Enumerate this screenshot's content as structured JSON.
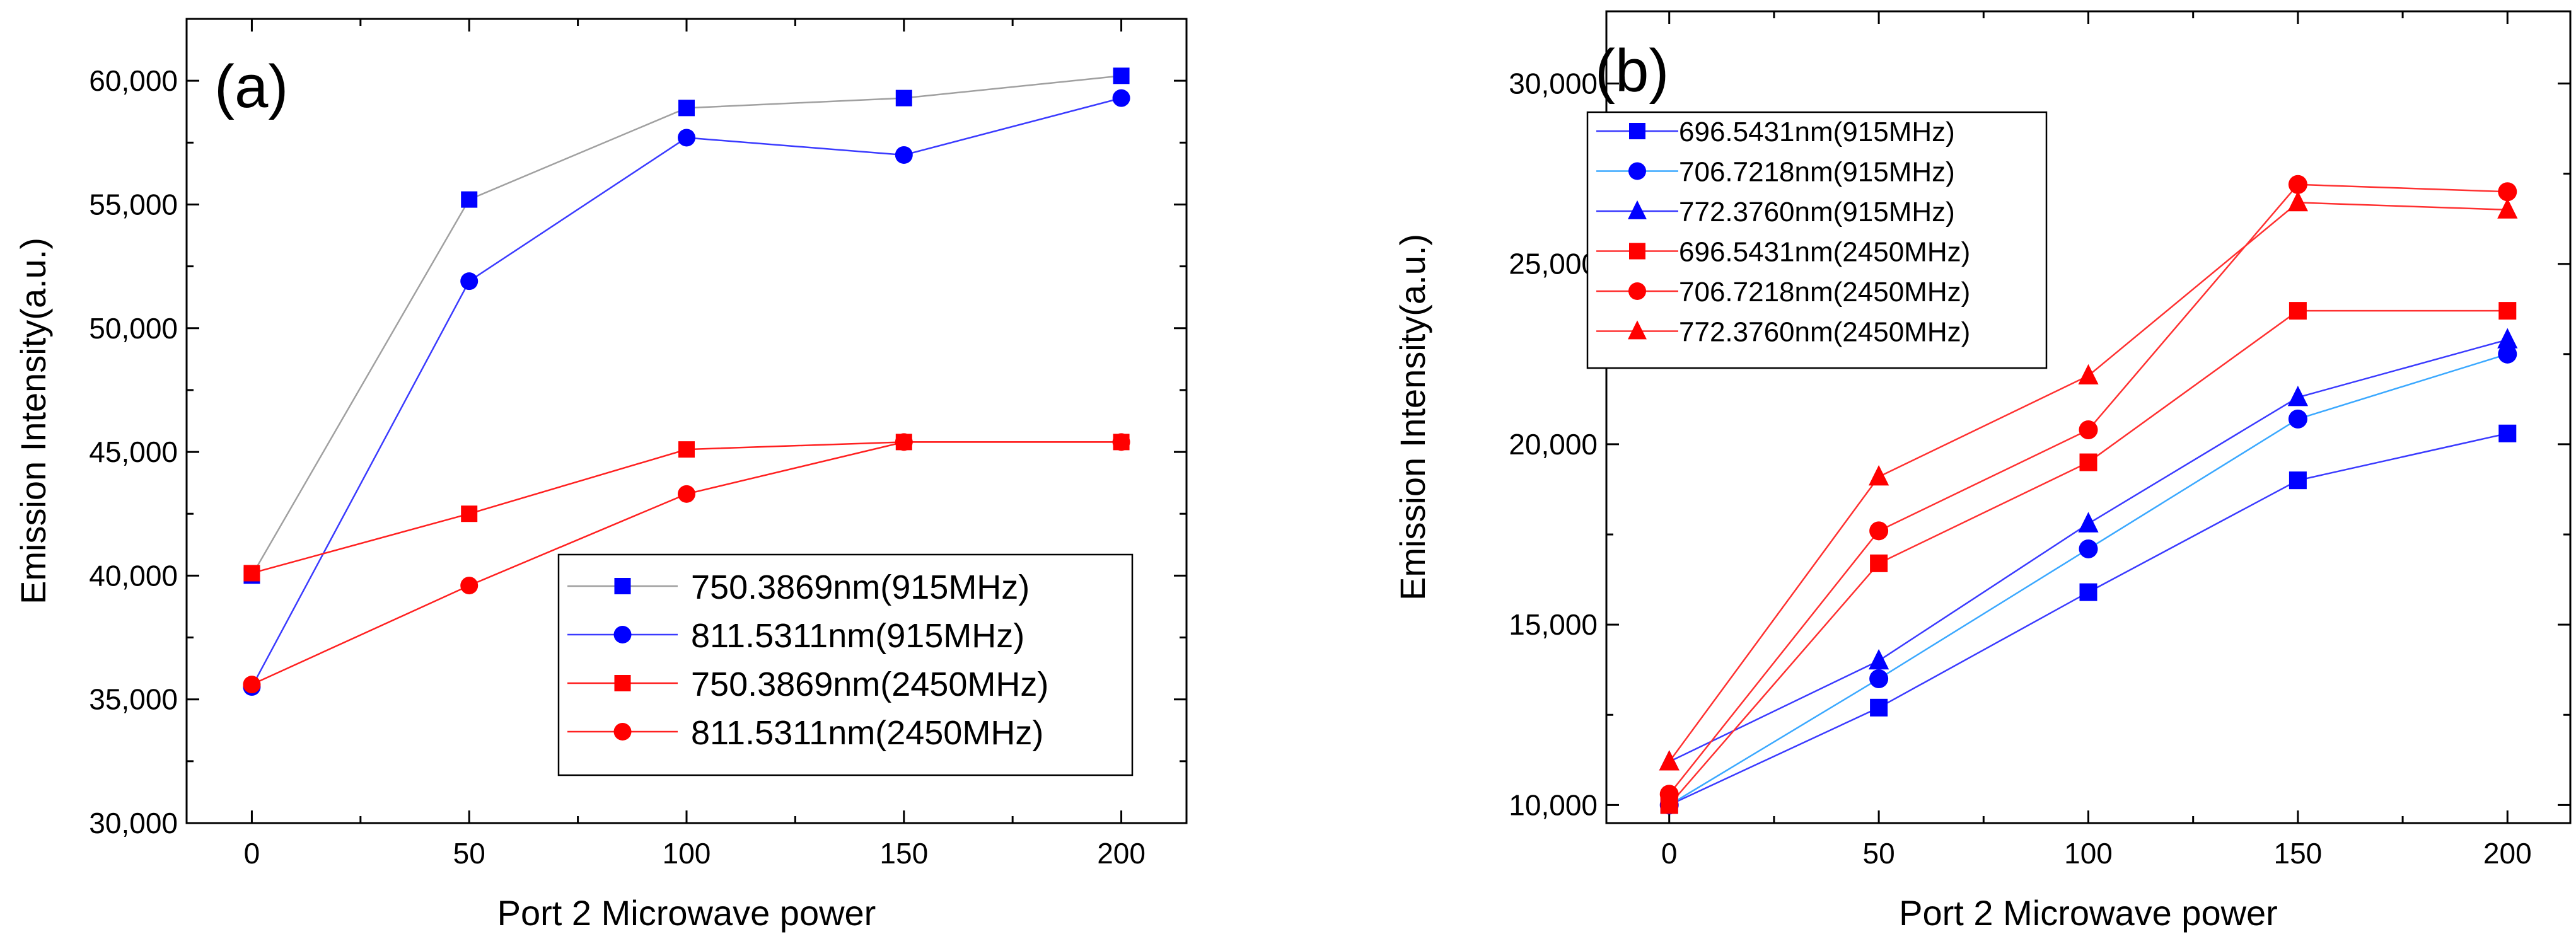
{
  "chart_data": [
    {
      "type": "line",
      "panel_label": "(a)",
      "xlabel": "Port 2 Microwave power",
      "ylabel": "Emission Intensity(a.u.)",
      "x": [
        0,
        50,
        100,
        150,
        200
      ],
      "xlim": [
        -15,
        215
      ],
      "ylim": [
        30000,
        62500
      ],
      "xticks": [
        0,
        50,
        100,
        150,
        200
      ],
      "yticks": [
        30000,
        35000,
        40000,
        45000,
        50000,
        55000,
        60000
      ],
      "xtick_labels": [
        "0",
        "50",
        "100",
        "150",
        "200"
      ],
      "ytick_labels": [
        "30,000",
        "35,000",
        "40,000",
        "45,000",
        "50,000",
        "55,000",
        "60,000"
      ],
      "grid": false,
      "legend_position": "bottom-right",
      "series": [
        {
          "name": "750.3869nm(915MHz)",
          "values": [
            40000,
            55200,
            58900,
            59300,
            60200
          ],
          "marker": "square",
          "line_color": "#a0a0a0",
          "marker_color": "#0000ff"
        },
        {
          "name": "811.5311nm(915MHz)",
          "values": [
            35500,
            51900,
            57700,
            57000,
            59300
          ],
          "marker": "circle",
          "line_color": "#3a3aff",
          "marker_color": "#0000ff"
        },
        {
          "name": "750.3869nm(2450MHz)",
          "values": [
            40100,
            42500,
            45100,
            45400,
            45400
          ],
          "marker": "square",
          "line_color": "#ff2020",
          "marker_color": "#ff0000"
        },
        {
          "name": "811.5311nm(2450MHz)",
          "values": [
            35600,
            39600,
            43300,
            45400,
            45400
          ],
          "marker": "circle",
          "line_color": "#ff2020",
          "marker_color": "#ff0000"
        }
      ]
    },
    {
      "type": "line",
      "panel_label": "(b)",
      "xlabel": "Port 2 Microwave power",
      "ylabel": "Emission Intensity(a.u.)",
      "x": [
        0,
        50,
        100,
        150,
        200
      ],
      "xlim": [
        -15,
        215
      ],
      "ylim": [
        9500,
        32000
      ],
      "xticks": [
        0,
        50,
        100,
        150,
        200
      ],
      "yticks": [
        10000,
        15000,
        20000,
        25000,
        30000
      ],
      "xtick_labels": [
        "0",
        "50",
        "100",
        "150",
        "200"
      ],
      "ytick_labels": [
        "10,000",
        "15,000",
        "20,000",
        "25,000",
        "30,000"
      ],
      "grid": false,
      "legend_position": "top-left",
      "series": [
        {
          "name": "696.5431nm(915MHz)",
          "values": [
            10000,
            12700,
            15900,
            19000,
            20300
          ],
          "marker": "square",
          "line_color": "#3a3aff",
          "marker_color": "#0000ff"
        },
        {
          "name": "706.7218nm(915MHz)",
          "values": [
            10000,
            13500,
            17100,
            20700,
            22500
          ],
          "marker": "circle",
          "line_color": "#3aa8ff",
          "marker_color": "#0000ff"
        },
        {
          "name": "772.3760nm(915MHz)",
          "values": [
            11200,
            14000,
            17800,
            21300,
            22900
          ],
          "marker": "triangle",
          "line_color": "#3a3aff",
          "marker_color": "#0000ff"
        },
        {
          "name": "696.5431nm(2450MHz)",
          "values": [
            10000,
            16700,
            19500,
            23700,
            23700
          ],
          "marker": "square",
          "line_color": "#ff3030",
          "marker_color": "#ff0000"
        },
        {
          "name": "706.7218nm(2450MHz)",
          "values": [
            10300,
            17600,
            20400,
            27200,
            27000
          ],
          "marker": "circle",
          "line_color": "#ff3030",
          "marker_color": "#ff0000"
        },
        {
          "name": "772.3760nm(2450MHz)",
          "values": [
            11200,
            19100,
            21900,
            26700,
            26500
          ],
          "marker": "triangle",
          "line_color": "#ff3030",
          "marker_color": "#ff0000"
        }
      ]
    }
  ]
}
